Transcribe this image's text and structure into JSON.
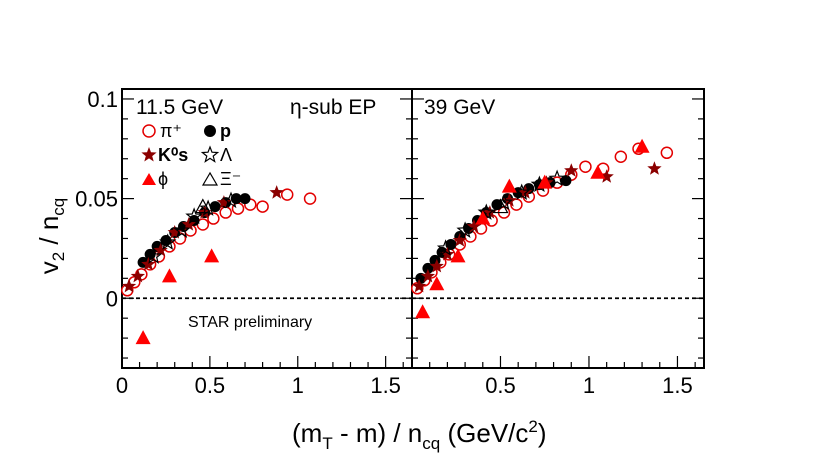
{
  "chart_data": [
    {
      "type": "scatter",
      "panel_label": "11.5 GeV",
      "method_label": "η-sub EP",
      "note": "STAR preliminary",
      "xlabel": "(m_T - m) / n_cq   (GeV/c^2)",
      "ylabel": "v_2 / n_cq",
      "xlim": [
        0,
        1.65
      ],
      "ylim": [
        -0.035,
        0.105
      ],
      "x_ticks": [
        "0",
        "0.5",
        "1",
        "1.5"
      ],
      "y_ticks": [
        "0",
        "0.05",
        "0.1"
      ],
      "reference_line_y": 0,
      "series": [
        {
          "name": "π+",
          "legend": "π⁺",
          "marker": "open-circle",
          "color": "#e30000",
          "x": [
            0.03,
            0.07,
            0.11,
            0.16,
            0.21,
            0.27,
            0.33,
            0.39,
            0.46,
            0.52,
            0.59,
            0.66,
            0.73,
            0.8,
            0.94,
            1.07
          ],
          "y": [
            0.004,
            0.008,
            0.012,
            0.017,
            0.021,
            0.026,
            0.03,
            0.034,
            0.037,
            0.04,
            0.043,
            0.045,
            0.047,
            0.046,
            0.052,
            0.05
          ]
        },
        {
          "name": "p",
          "legend": "p",
          "marker": "filled-circle",
          "color": "#000000",
          "x": [
            0.12,
            0.16,
            0.2,
            0.25,
            0.3,
            0.35,
            0.41,
            0.47,
            0.53,
            0.59,
            0.65,
            0.7
          ],
          "y": [
            0.018,
            0.022,
            0.026,
            0.029,
            0.033,
            0.036,
            0.039,
            0.043,
            0.046,
            0.048,
            0.05,
            0.05
          ]
        },
        {
          "name": "K0s",
          "legend": "K⁰s",
          "marker": "filled-star",
          "color": "#8b0000",
          "x": [
            0.04,
            0.09,
            0.15,
            0.22,
            0.3,
            0.38,
            0.47,
            0.58,
            0.88
          ],
          "y": [
            0.006,
            0.011,
            0.017,
            0.024,
            0.033,
            0.037,
            0.043,
            0.048,
            0.053
          ]
        },
        {
          "name": "Λ",
          "legend": "Λ",
          "marker": "open-star",
          "color": "#000000",
          "x": [
            0.18,
            0.26,
            0.34,
            0.41,
            0.49,
            0.62
          ],
          "y": [
            0.021,
            0.028,
            0.034,
            0.041,
            0.045,
            0.049
          ]
        },
        {
          "name": "Ξ-",
          "legend": "Ξ⁻",
          "marker": "open-triangle",
          "color": "#000000",
          "x": [
            0.46
          ],
          "y": [
            0.046
          ]
        },
        {
          "name": "ϕ",
          "legend": "ϕ",
          "marker": "filled-triangle",
          "color": "#ff0000",
          "x": [
            0.12,
            0.27,
            0.51
          ],
          "y": [
            -0.02,
            0.011,
            0.021
          ]
        }
      ]
    },
    {
      "type": "scatter",
      "panel_label": "39 GeV",
      "xlim": [
        0,
        1.65
      ],
      "ylim": [
        -0.035,
        0.105
      ],
      "x_ticks": [
        "0.5",
        "1",
        "1.5"
      ],
      "reference_line_y": 0,
      "series": [
        {
          "name": "π+",
          "marker": "open-circle",
          "color": "#e30000",
          "x": [
            0.03,
            0.07,
            0.11,
            0.16,
            0.21,
            0.27,
            0.33,
            0.39,
            0.45,
            0.52,
            0.59,
            0.66,
            0.74,
            0.82,
            0.9,
            0.98,
            1.08,
            1.18,
            1.28,
            1.44
          ],
          "y": [
            0.005,
            0.009,
            0.013,
            0.018,
            0.022,
            0.027,
            0.031,
            0.035,
            0.039,
            0.043,
            0.047,
            0.051,
            0.054,
            0.058,
            0.062,
            0.066,
            0.065,
            0.071,
            0.075,
            0.073
          ]
        },
        {
          "name": "p",
          "marker": "filled-circle",
          "color": "#000000",
          "x": [
            0.05,
            0.09,
            0.13,
            0.17,
            0.22,
            0.27,
            0.32,
            0.37,
            0.42,
            0.48,
            0.54,
            0.6,
            0.66,
            0.72,
            0.78,
            0.87
          ],
          "y": [
            0.01,
            0.015,
            0.019,
            0.023,
            0.027,
            0.031,
            0.035,
            0.039,
            0.043,
            0.047,
            0.05,
            0.053,
            0.055,
            0.057,
            0.058,
            0.059
          ]
        },
        {
          "name": "K0s",
          "marker": "filled-star",
          "color": "#8b0000",
          "x": [
            0.04,
            0.09,
            0.14,
            0.2,
            0.27,
            0.35,
            0.44,
            0.55,
            0.64,
            0.76,
            0.9,
            1.1,
            1.37
          ],
          "y": [
            0.006,
            0.011,
            0.016,
            0.022,
            0.029,
            0.036,
            0.043,
            0.049,
            0.053,
            0.058,
            0.064,
            0.061,
            0.065
          ]
        },
        {
          "name": "Λ",
          "marker": "open-star",
          "color": "#000000",
          "x": [
            0.19,
            0.3,
            0.42,
            0.52,
            0.62,
            0.72,
            0.82
          ],
          "y": [
            0.025,
            0.034,
            0.043,
            0.048,
            0.053,
            0.057,
            0.06
          ]
        },
        {
          "name": "Ξ-",
          "marker": "open-triangle",
          "color": "#000000",
          "x": [
            0.5
          ],
          "y": [
            0.046
          ]
        },
        {
          "name": "ϕ",
          "marker": "filled-triangle",
          "color": "#ff0000",
          "x": [
            0.06,
            0.14,
            0.26,
            0.4,
            0.55,
            0.75,
            1.05,
            1.3
          ],
          "y": [
            -0.007,
            0.007,
            0.021,
            0.04,
            0.056,
            0.058,
            0.063,
            0.076
          ]
        }
      ]
    }
  ],
  "legend": {
    "entries": [
      "π⁺",
      "p",
      "K⁰s",
      "Λ",
      "ϕ",
      "Ξ⁻"
    ]
  }
}
